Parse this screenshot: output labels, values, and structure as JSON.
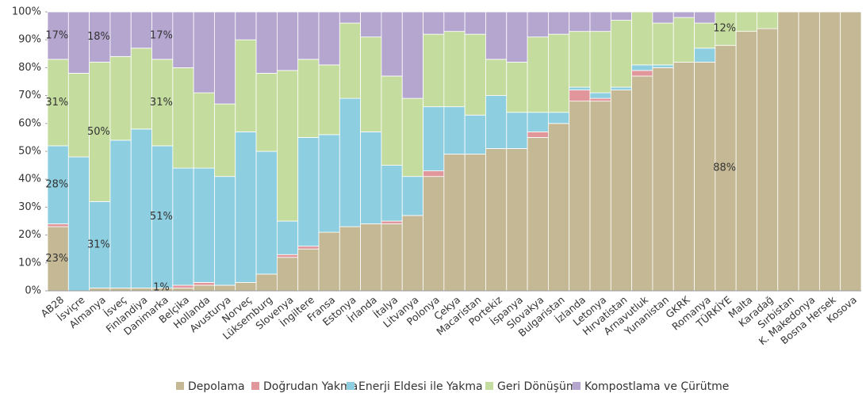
{
  "chart_data": {
    "type": "stacked_bar",
    "categories": [
      "AB28",
      "İsviçre",
      "Almanya",
      "İsveç",
      "Finlandiya",
      "Danimarka",
      "Belçika",
      "Hollanda",
      "Avusturya",
      "Norveç",
      "Lüksemburg",
      "Slovenya",
      "İngiltere",
      "Fransa",
      "Estonya",
      "İrlanda",
      "İtalya",
      "Litvanya",
      "Polonya",
      "Çekya",
      "Macaristan",
      "Portekiz",
      "İspanya",
      "Slovakya",
      "Bulgaristan",
      "İzlanda",
      "Letonya",
      "Hırvatistan",
      "Arnavutluk",
      "Yunanistan",
      "GKRK",
      "Romanya",
      "TÜRKİYE",
      "Malta",
      "Karadağ",
      "Sırbistan",
      "K. Makedonya",
      "Bosna Hersek",
      "Kosova"
    ],
    "series": [
      {
        "name": "Depolama",
        "color": "#c5b995",
        "values": [
          23,
          0,
          1,
          1,
          1,
          1,
          1,
          2,
          2,
          3,
          6,
          12,
          15,
          21,
          23,
          24,
          24,
          27,
          41,
          49,
          49,
          51,
          51,
          55,
          60,
          68,
          68,
          72,
          77,
          80,
          82,
          82,
          88,
          93,
          94,
          100,
          100,
          100,
          100
        ],
        "value_labels": [
          "23%",
          null,
          null,
          null,
          null,
          "1%",
          null,
          null,
          null,
          null,
          null,
          null,
          null,
          null,
          null,
          null,
          null,
          null,
          null,
          null,
          null,
          null,
          null,
          null,
          null,
          null,
          null,
          null,
          null,
          null,
          null,
          null,
          "88%",
          null,
          null,
          null,
          null,
          null,
          null
        ]
      },
      {
        "name": "Doğrudan Yakma",
        "color": "#e0969a",
        "values": [
          1,
          0,
          0,
          0,
          0,
          0,
          1,
          1,
          0,
          0,
          0,
          1,
          1,
          0,
          0,
          0,
          1,
          0,
          2,
          0,
          0,
          0,
          0,
          2,
          0,
          4,
          1,
          0,
          2,
          0,
          0,
          0,
          0,
          0,
          0,
          0,
          0,
          0,
          0
        ]
      },
      {
        "name": "Enerji Eldesi ile Yakma",
        "color": "#8dcfe0",
        "values": [
          28,
          48,
          31,
          53,
          57,
          51,
          42,
          41,
          39,
          54,
          44,
          12,
          39,
          35,
          46,
          33,
          20,
          14,
          23,
          17,
          14,
          19,
          13,
          7,
          4,
          1,
          2,
          1,
          2,
          1,
          0,
          5,
          0,
          0,
          0,
          0,
          0,
          0,
          0
        ],
        "value_labels": [
          "28%",
          null,
          "31%",
          null,
          null,
          "51%",
          null,
          null,
          null,
          null,
          null,
          null,
          null,
          null,
          null,
          null,
          null,
          null,
          null,
          null,
          null,
          null,
          null,
          null,
          null,
          null,
          null,
          null,
          null,
          null,
          null,
          null,
          null,
          null,
          null,
          null,
          null,
          null,
          null
        ]
      },
      {
        "name": "Geri Dönüşüm",
        "color": "#c4dc9e",
        "values": [
          31,
          30,
          50,
          30,
          29,
          31,
          36,
          27,
          26,
          33,
          28,
          54,
          28,
          25,
          27,
          34,
          32,
          28,
          26,
          27,
          29,
          13,
          18,
          27,
          28,
          20,
          22,
          24,
          19,
          15,
          16,
          9,
          12,
          7,
          6,
          0,
          0,
          0,
          0
        ],
        "value_labels": [
          "31%",
          null,
          "50%",
          null,
          null,
          "31%",
          null,
          null,
          null,
          null,
          null,
          null,
          null,
          null,
          null,
          null,
          null,
          null,
          null,
          null,
          null,
          null,
          null,
          null,
          null,
          null,
          null,
          null,
          null,
          null,
          null,
          null,
          "12%",
          null,
          null,
          null,
          null,
          null,
          null
        ]
      },
      {
        "name": "Kompostlama ve Çürütme",
        "color": "#b5a6d0",
        "values": [
          17,
          22,
          18,
          16,
          13,
          17,
          20,
          29,
          33,
          10,
          22,
          21,
          17,
          19,
          4,
          9,
          23,
          31,
          8,
          7,
          8,
          17,
          18,
          9,
          8,
          7,
          7,
          3,
          0,
          4,
          2,
          4,
          0,
          0,
          0,
          0,
          0,
          0,
          0
        ],
        "value_labels": [
          "17%",
          null,
          "18%",
          null,
          null,
          "17%",
          null,
          null,
          null,
          null,
          null,
          null,
          null,
          null,
          null,
          null,
          null,
          null,
          null,
          null,
          null,
          null,
          null,
          null,
          null,
          null,
          null,
          null,
          null,
          null,
          null,
          null,
          null,
          null,
          null,
          null,
          null,
          null,
          null
        ]
      }
    ],
    "ylim": [
      0,
      100
    ],
    "yticks": [
      {
        "value": 0,
        "label": "0%"
      },
      {
        "value": 10,
        "label": "10%"
      },
      {
        "value": 20,
        "label": "20%"
      },
      {
        "value": 30,
        "label": "30%"
      },
      {
        "value": 40,
        "label": "40%"
      },
      {
        "value": 50,
        "label": "50%"
      },
      {
        "value": 60,
        "label": "60%"
      },
      {
        "value": 70,
        "label": "70%"
      },
      {
        "value": 80,
        "label": "80%"
      },
      {
        "value": 90,
        "label": "90%"
      },
      {
        "value": 100,
        "label": "100%"
      }
    ],
    "legend": "bottom"
  }
}
